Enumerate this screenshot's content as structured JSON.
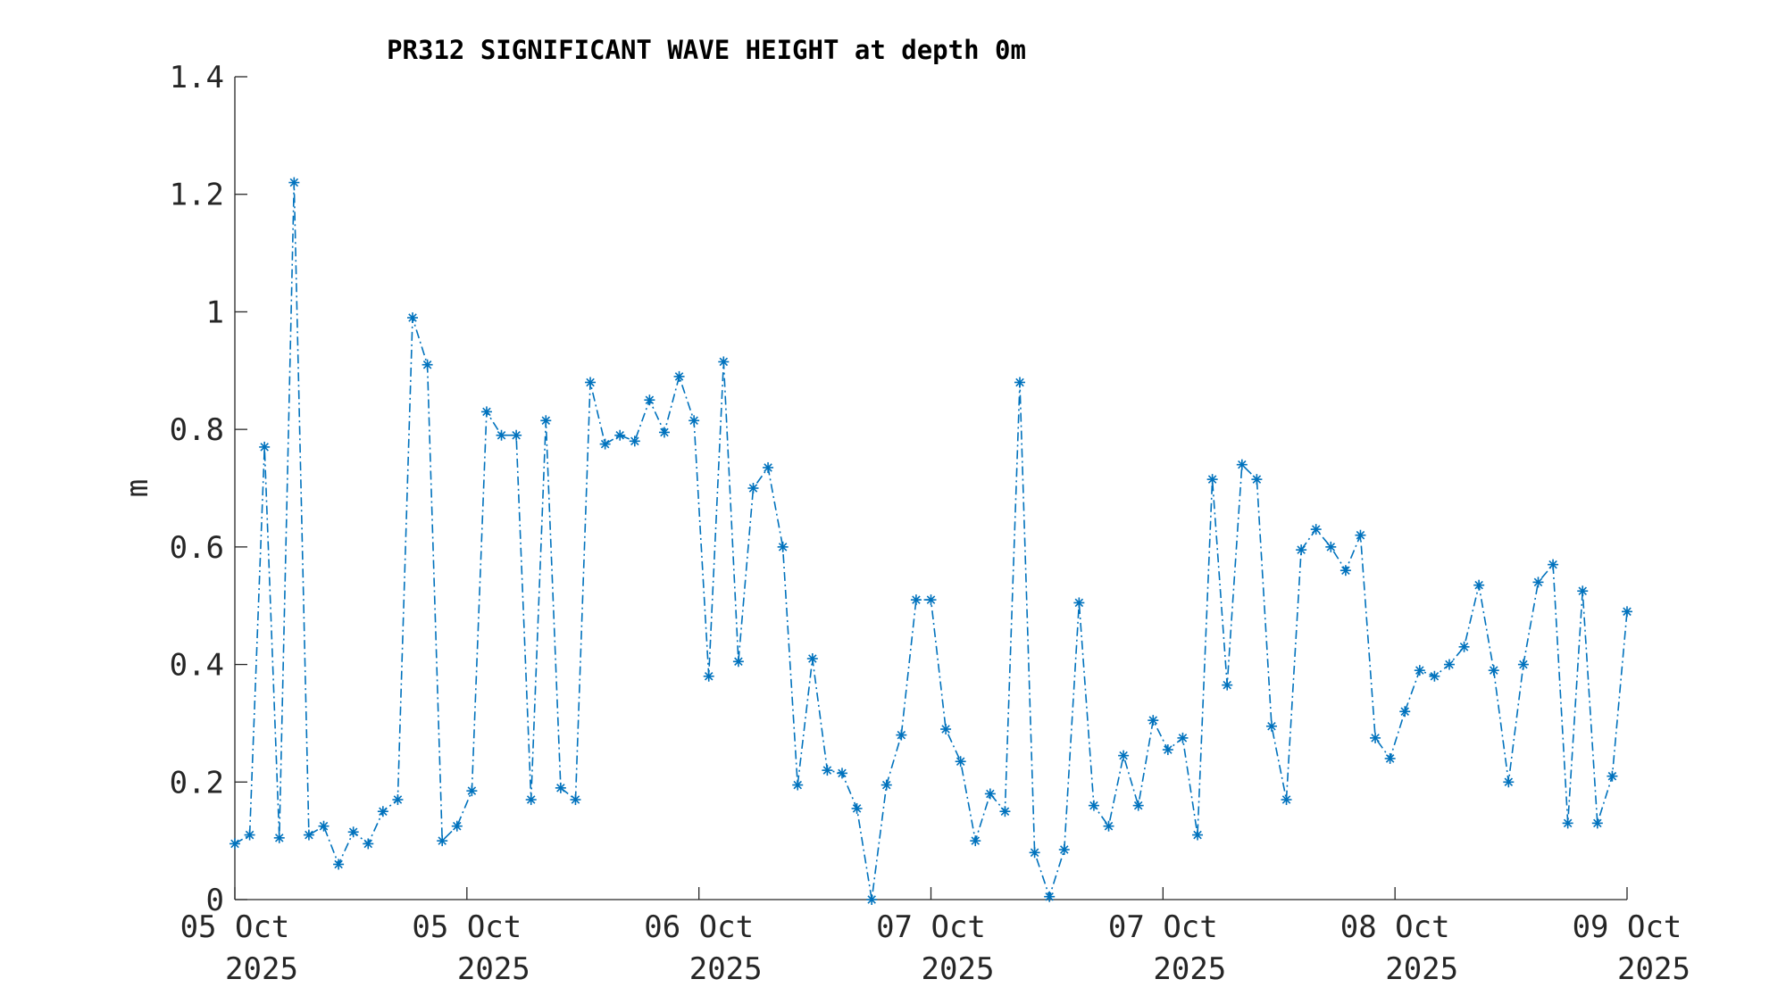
{
  "chart_data": {
    "type": "line",
    "title": "PR312 SIGNIFICANT WAVE HEIGHT at depth 0m",
    "xlabel": "",
    "ylabel": "m",
    "ylim": [
      0,
      1.4
    ],
    "yticks": [
      0,
      0.2,
      0.4,
      0.6,
      0.8,
      1,
      1.2,
      1.4
    ],
    "ytick_labels": [
      "0",
      "0.2",
      "0.4",
      "0.6",
      "0.8",
      "1",
      "1.2",
      "1.4"
    ],
    "xlim": [
      "2025-10-05 00:00",
      "2025-10-09 00:00"
    ],
    "xtick_labels": [
      {
        "line1": "05 Oct",
        "line2": "2025"
      },
      {
        "line1": "05 Oct",
        "line2": "2025"
      },
      {
        "line1": "06 Oct",
        "line2": "2025"
      },
      {
        "line1": "07 Oct",
        "line2": "2025"
      },
      {
        "line1": "07 Oct",
        "line2": "2025"
      },
      {
        "line1": "08 Oct",
        "line2": "2025"
      },
      {
        "line1": "09 Oct",
        "line2": "2025"
      }
    ],
    "grid": false,
    "marker": "asterisk",
    "line_style": "dash-dot",
    "series": [
      {
        "color": "#0072BD",
        "values": [
          0.095,
          0.11,
          0.77,
          0.105,
          1.22,
          0.11,
          0.125,
          0.06,
          0.115,
          0.095,
          0.15,
          0.17,
          0.99,
          0.91,
          0.1,
          0.125,
          0.185,
          0.83,
          0.79,
          0.79,
          0.17,
          0.815,
          0.19,
          0.17,
          0.88,
          0.775,
          0.79,
          0.78,
          0.85,
          0.795,
          0.89,
          0.815,
          0.38,
          0.915,
          0.405,
          0.7,
          0.735,
          0.6,
          0.195,
          0.41,
          0.22,
          0.215,
          0.155,
          0.0,
          0.195,
          0.28,
          0.51,
          0.51,
          0.29,
          0.235,
          0.1,
          0.18,
          0.15,
          0.88,
          0.08,
          0.005,
          0.085,
          0.505,
          0.16,
          0.125,
          0.245,
          0.16,
          0.305,
          0.255,
          0.275,
          0.11,
          0.715,
          0.365,
          0.74,
          0.715,
          0.295,
          0.17,
          0.595,
          0.63,
          0.6,
          0.56,
          0.62,
          0.275,
          0.24,
          0.32,
          0.39,
          0.38,
          0.4,
          0.43,
          0.535,
          0.39,
          0.2,
          0.4,
          0.54,
          0.57,
          0.13,
          0.525,
          0.13,
          0.21,
          0.49
        ]
      }
    ]
  }
}
